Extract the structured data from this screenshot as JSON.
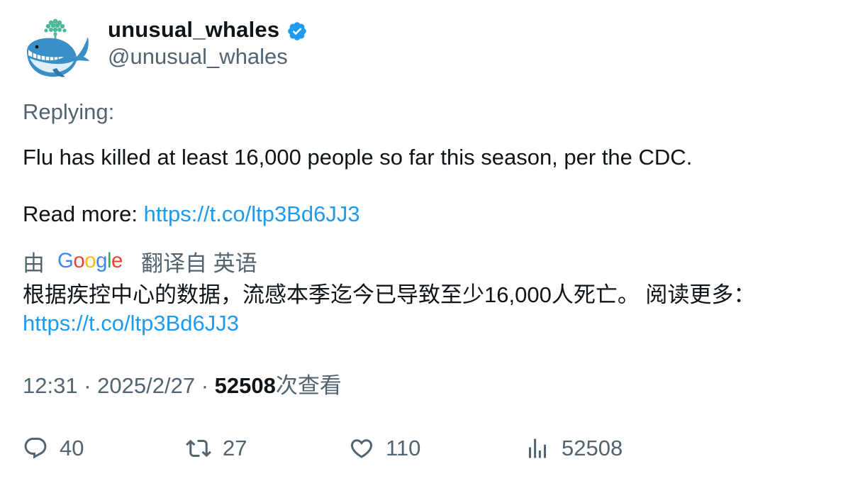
{
  "author": {
    "display_name": "unusual_whales",
    "handle": "@unusual_whales",
    "verified": true
  },
  "reply_label": "Replying:",
  "tweet": {
    "line1": "Flu has killed at least 16,000 people so far this season, per the CDC.",
    "read_more_label": "Read more: ",
    "link": "https://t.co/ltp3Bd6JJ3"
  },
  "translation": {
    "by_label": "由",
    "provider": "Google",
    "translated_from_label": "翻译自 英语",
    "text": "根据疾控中心的数据，流感本季迄今已导致至少16,000人死亡。 阅读更多：",
    "link": "https://t.co/ltp3Bd6JJ3"
  },
  "meta": {
    "time": "12:31",
    "date": "2025/2/27",
    "separator": "·",
    "views_count": "52508",
    "views_label": "次查看"
  },
  "actions": {
    "replies": "40",
    "retweets": "27",
    "likes": "110",
    "views": "52508"
  },
  "colors": {
    "text_primary": "#0f1419",
    "text_secondary": "#536471",
    "link": "#1d9bf0",
    "verified_badge": "#1d9bf0"
  },
  "icons": {
    "avatar": "whale-avatar",
    "verified": "verified-badge-icon",
    "reply": "reply-icon",
    "retweet": "retweet-icon",
    "like": "heart-icon",
    "views": "analytics-bars-icon"
  }
}
